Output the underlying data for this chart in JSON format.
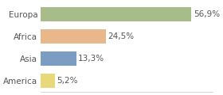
{
  "categories": [
    "America",
    "Asia",
    "Africa",
    "Europa"
  ],
  "values": [
    5.2,
    13.3,
    24.5,
    56.9
  ],
  "labels": [
    "5,2%",
    "13,3%",
    "24,5%",
    "56,9%"
  ],
  "bar_colors": [
    "#e8d87a",
    "#7b9dc4",
    "#e8b88a",
    "#a8bc8a"
  ],
  "background_color": "#ffffff",
  "xlim": [
    0,
    65
  ],
  "label_fontsize": 7.5,
  "category_fontsize": 7.5
}
